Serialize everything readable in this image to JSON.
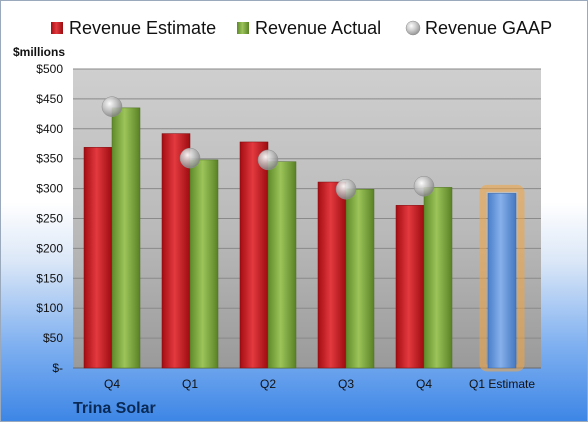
{
  "footer": "Trina Solar",
  "chart_data": {
    "type": "bar",
    "ylabel": "$millions",
    "ylim": [
      0,
      500
    ],
    "ytick_step": 50,
    "ytick_labels": [
      "$-",
      "$50",
      "$100",
      "$150",
      "$200",
      "$250",
      "$300",
      "$350",
      "$400",
      "$450",
      "$500"
    ],
    "categories": [
      "Q4",
      "Q1",
      "Q2",
      "Q3",
      "Q4",
      "Q1 Estimate"
    ],
    "series": [
      {
        "name": "Revenue Estimate",
        "kind": "bar",
        "color": "#c8161d",
        "values": [
          369,
          392,
          378,
          311,
          272,
          null
        ]
      },
      {
        "name": "Revenue Actual",
        "kind": "bar",
        "color": "#79a33a",
        "values": [
          435,
          348,
          345,
          299,
          302,
          null
        ]
      },
      {
        "name": "Revenue GAAP",
        "kind": "marker",
        "color": "#b5b5b5",
        "values": [
          437,
          351,
          348,
          299,
          304,
          null
        ]
      },
      {
        "name": "Q1 Estimate",
        "kind": "highlight-bar",
        "color": "#5b8fd6",
        "glow": "#f4a640",
        "values": [
          null,
          null,
          null,
          null,
          null,
          292
        ]
      }
    ],
    "legend_position": "top",
    "grid": true
  }
}
